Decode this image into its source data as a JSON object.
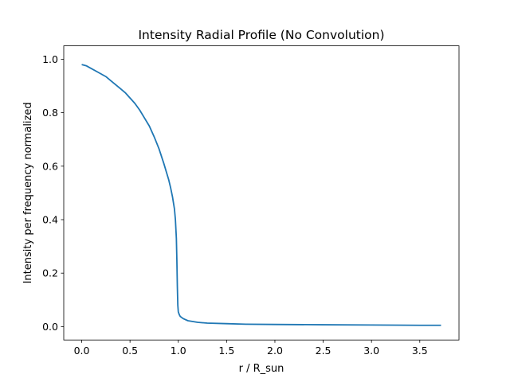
{
  "chart_data": {
    "type": "line",
    "title": "Intensity Radial Profile (No Convolution)",
    "xlabel": "r / R_sun",
    "ylabel": "Intensity per frequency normalized",
    "xlim": [
      -0.186,
      3.906
    ],
    "ylim": [
      -0.05,
      1.05
    ],
    "xticks": [
      0.0,
      0.5,
      1.0,
      1.5,
      2.0,
      2.5,
      3.0,
      3.5
    ],
    "xtick_labels": [
      "0.0",
      "0.5",
      "1.0",
      "1.5",
      "2.0",
      "2.5",
      "3.0",
      "3.5"
    ],
    "yticks": [
      0.0,
      0.2,
      0.4,
      0.6,
      0.8,
      1.0
    ],
    "ytick_labels": [
      "0.0",
      "0.2",
      "0.4",
      "0.6",
      "0.8",
      "1.0"
    ],
    "grid": false,
    "legend": "none",
    "line_color": "#1f77b4",
    "series": [
      {
        "x": [
          0.0,
          0.05,
          0.1,
          0.15,
          0.2,
          0.25,
          0.3,
          0.35,
          0.4,
          0.45,
          0.5,
          0.55,
          0.6,
          0.65,
          0.7,
          0.75,
          0.8,
          0.85,
          0.9,
          0.92,
          0.94,
          0.96,
          0.97,
          0.98,
          0.985,
          0.99,
          0.995,
          1.0,
          1.01,
          1.02,
          1.05,
          1.1,
          1.2,
          1.3,
          1.5,
          1.7,
          2.0,
          2.5,
          3.0,
          3.5,
          3.72
        ],
        "y": [
          0.98,
          0.975,
          0.965,
          0.955,
          0.945,
          0.935,
          0.92,
          0.905,
          0.89,
          0.875,
          0.855,
          0.835,
          0.81,
          0.78,
          0.75,
          0.71,
          0.665,
          0.61,
          0.55,
          0.52,
          0.485,
          0.44,
          0.4,
          0.33,
          0.25,
          0.15,
          0.08,
          0.055,
          0.045,
          0.038,
          0.03,
          0.022,
          0.016,
          0.013,
          0.011,
          0.009,
          0.008,
          0.007,
          0.006,
          0.005,
          0.005
        ]
      }
    ]
  }
}
